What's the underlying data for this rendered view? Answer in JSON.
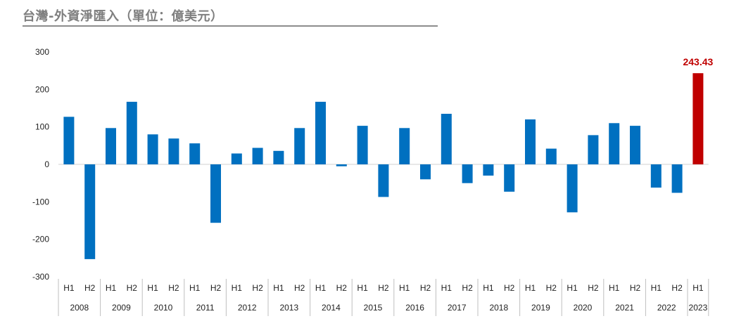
{
  "chart_data": {
    "type": "bar",
    "title": "台灣-外資淨匯入（單位：億美元）",
    "xlabel": "",
    "ylabel": "",
    "ylim": [
      -300,
      300
    ],
    "yticks": [
      300,
      200,
      100,
      0,
      -100,
      -200,
      -300
    ],
    "ytick_labels": [
      "300",
      "200",
      "100",
      "0",
      "-100",
      "-200",
      "-300"
    ],
    "years": [
      "2008",
      "2009",
      "2010",
      "2011",
      "2012",
      "2013",
      "2014",
      "2015",
      "2016",
      "2017",
      "2018",
      "2019",
      "2020",
      "2021",
      "2022",
      "2023"
    ],
    "categories": [
      {
        "year": "2008",
        "half": "H1"
      },
      {
        "year": "2008",
        "half": "H2"
      },
      {
        "year": "2009",
        "half": "H1"
      },
      {
        "year": "2009",
        "half": "H2"
      },
      {
        "year": "2010",
        "half": "H1"
      },
      {
        "year": "2010",
        "half": "H2"
      },
      {
        "year": "2011",
        "half": "H1"
      },
      {
        "year": "2011",
        "half": "H2"
      },
      {
        "year": "2012",
        "half": "H1"
      },
      {
        "year": "2012",
        "half": "H2"
      },
      {
        "year": "2013",
        "half": "H1"
      },
      {
        "year": "2013",
        "half": "H2"
      },
      {
        "year": "2014",
        "half": "H1"
      },
      {
        "year": "2014",
        "half": "H2"
      },
      {
        "year": "2015",
        "half": "H1"
      },
      {
        "year": "2015",
        "half": "H2"
      },
      {
        "year": "2016",
        "half": "H1"
      },
      {
        "year": "2016",
        "half": "H2"
      },
      {
        "year": "2017",
        "half": "H1"
      },
      {
        "year": "2017",
        "half": "H2"
      },
      {
        "year": "2018",
        "half": "H1"
      },
      {
        "year": "2018",
        "half": "H2"
      },
      {
        "year": "2019",
        "half": "H1"
      },
      {
        "year": "2019",
        "half": "H2"
      },
      {
        "year": "2020",
        "half": "H1"
      },
      {
        "year": "2020",
        "half": "H2"
      },
      {
        "year": "2021",
        "half": "H1"
      },
      {
        "year": "2021",
        "half": "H2"
      },
      {
        "year": "2022",
        "half": "H1"
      },
      {
        "year": "2022",
        "half": "H2"
      },
      {
        "year": "2023",
        "half": "H1"
      }
    ],
    "values": [
      127,
      -253,
      97,
      167,
      80,
      69,
      56,
      -156,
      29,
      44,
      36,
      97,
      167,
      -5,
      103,
      -87,
      97,
      -40,
      135,
      -50,
      -30,
      -73,
      120,
      42,
      -128,
      78,
      110,
      103,
      -62,
      -76,
      243.43
    ],
    "colors": {
      "default": "#0070c0",
      "highlight": "#c00000"
    },
    "highlight_index": 30,
    "annotations": [
      {
        "index": 30,
        "text": "243.43"
      }
    ]
  }
}
